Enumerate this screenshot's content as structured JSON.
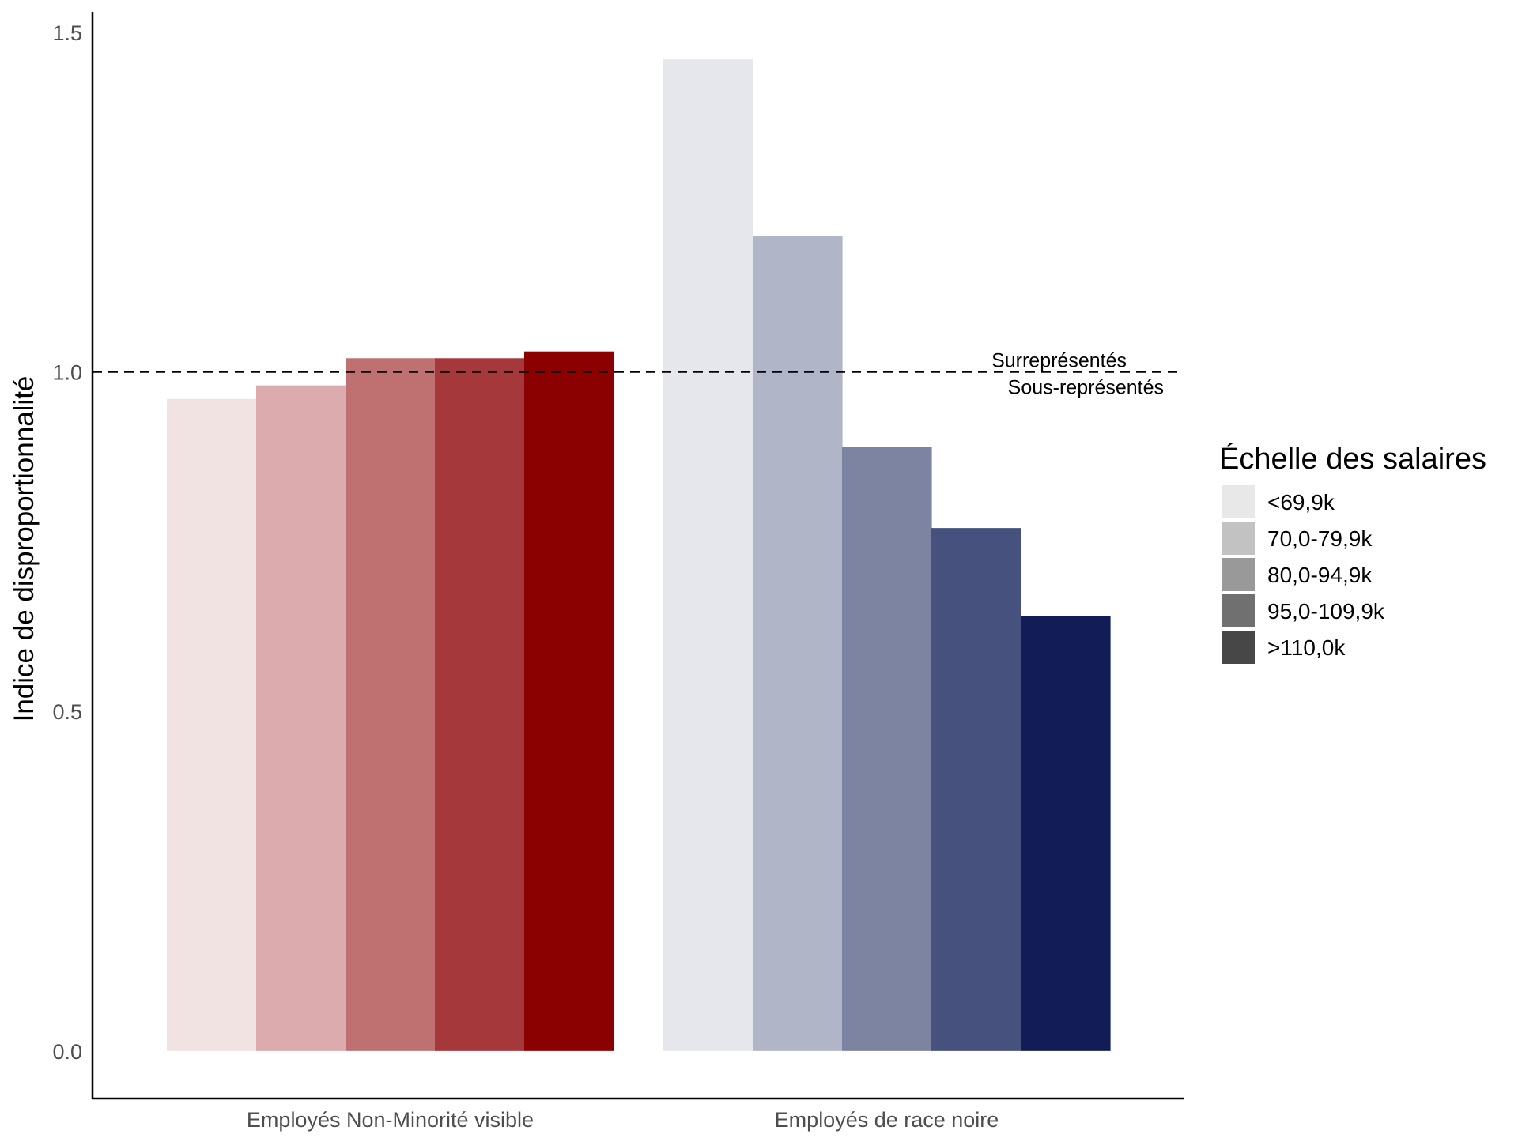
{
  "chart_data": {
    "type": "bar",
    "title": "",
    "xlabel": "",
    "ylabel": "Indice de disproportionnalité",
    "ylim": [
      -0.07,
      1.53
    ],
    "yticks": [
      0.0,
      0.5,
      1.0,
      1.5
    ],
    "ytick_labels": [
      "0.0",
      "0.5",
      "1.0",
      "1.5"
    ],
    "grid": false,
    "categories": [
      "Employés Non-Minorité visible",
      "Employés de race noire"
    ],
    "series": [
      {
        "name": "<69,9k",
        "values": [
          0.96,
          1.46
        ]
      },
      {
        "name": "70,0-79,9k",
        "values": [
          0.98,
          1.2
        ]
      },
      {
        "name": "80,0-94,9k",
        "values": [
          1.02,
          0.89
        ]
      },
      {
        "name": "95,0-109,9k",
        "values": [
          1.02,
          0.77
        ]
      },
      {
        "name": ">110,0k",
        "values": [
          1.03,
          0.64
        ]
      }
    ],
    "bar_colors": [
      [
        "#f2e3e3",
        "#dbabad",
        "#bf7171",
        "#a5383a",
        "#8b0000"
      ],
      [
        "#e6e7ed",
        "#b0b5c8",
        "#7c84a2",
        "#46527d",
        "#121d57"
      ]
    ],
    "reference_line": {
      "value": 1.0,
      "style": "dashed",
      "label_above": "Surreprésentés",
      "label_below": "Sous-représentés"
    },
    "legend": {
      "title": "Échelle des salaires",
      "placement": "right",
      "items": [
        "<69,9k",
        "70,0-79,9k",
        "80,0-94,9k",
        "95,0-109,9k",
        ">110,0k"
      ],
      "swatch_colors": [
        "#e8e8e8",
        "#c2c2c2",
        "#999999",
        "#707070",
        "#474747"
      ]
    }
  }
}
